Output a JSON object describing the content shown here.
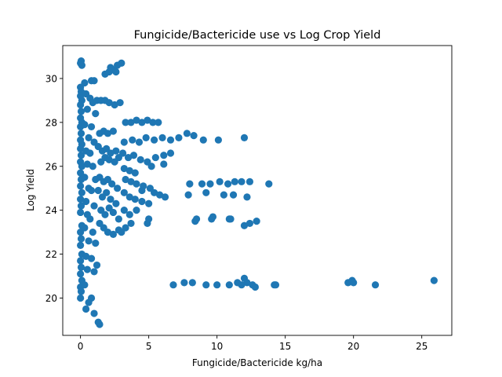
{
  "chart_data": {
    "type": "scatter",
    "title": "Fungicide/Bactericide use vs Log Crop Yield",
    "xlabel": "Fungicide/Bactericide kg/ha",
    "ylabel": "Log Yield",
    "xlim": [
      -1.3,
      27.2
    ],
    "ylim": [
      18.3,
      31.5
    ],
    "xticks": [
      0,
      5,
      10,
      15,
      20,
      25
    ],
    "yticks": [
      20,
      22,
      24,
      26,
      28,
      30
    ],
    "grid": false,
    "legend": "none",
    "color": "#1f77b4",
    "series": [
      {
        "points": [
          [
            0.0,
            30.7
          ],
          [
            0.05,
            30.8
          ],
          [
            0.1,
            30.6
          ],
          [
            0.0,
            29.6
          ],
          [
            0.05,
            29.4
          ],
          [
            0.0,
            29.2
          ],
          [
            0.1,
            29.0
          ],
          [
            0.0,
            28.8
          ],
          [
            0.05,
            28.5
          ],
          [
            0.0,
            28.2
          ],
          [
            0.1,
            28.0
          ],
          [
            0.0,
            27.8
          ],
          [
            0.05,
            27.5
          ],
          [
            0.0,
            27.2
          ],
          [
            0.1,
            27.0
          ],
          [
            0.0,
            26.8
          ],
          [
            0.05,
            26.5
          ],
          [
            0.0,
            26.2
          ],
          [
            0.1,
            26.0
          ],
          [
            0.0,
            25.7
          ],
          [
            0.05,
            25.4
          ],
          [
            0.0,
            25.1
          ],
          [
            0.1,
            24.8
          ],
          [
            0.0,
            24.5
          ],
          [
            0.05,
            24.2
          ],
          [
            0.0,
            23.9
          ],
          [
            0.1,
            23.3
          ],
          [
            0.0,
            23.0
          ],
          [
            0.05,
            22.7
          ],
          [
            0.0,
            22.4
          ],
          [
            0.1,
            22.0
          ],
          [
            0.0,
            21.7
          ],
          [
            0.05,
            21.4
          ],
          [
            0.0,
            21.1
          ],
          [
            0.1,
            20.8
          ],
          [
            0.0,
            20.5
          ],
          [
            0.05,
            20.3
          ],
          [
            0.0,
            20.0
          ],
          [
            0.3,
            29.8
          ],
          [
            0.4,
            29.3
          ],
          [
            0.5,
            28.6
          ],
          [
            0.3,
            27.9
          ],
          [
            0.6,
            27.3
          ],
          [
            0.4,
            26.7
          ],
          [
            0.5,
            26.1
          ],
          [
            0.3,
            25.5
          ],
          [
            0.6,
            25.0
          ],
          [
            0.4,
            24.4
          ],
          [
            0.5,
            23.8
          ],
          [
            0.3,
            23.2
          ],
          [
            0.6,
            22.6
          ],
          [
            0.4,
            21.9
          ],
          [
            0.5,
            21.3
          ],
          [
            0.3,
            20.6
          ],
          [
            0.6,
            19.8
          ],
          [
            0.4,
            19.5
          ],
          [
            0.8,
            29.9
          ],
          [
            1.0,
            29.9
          ],
          [
            0.7,
            29.1
          ],
          [
            0.9,
            28.9
          ],
          [
            1.1,
            28.4
          ],
          [
            0.8,
            27.8
          ],
          [
            1.0,
            27.1
          ],
          [
            0.7,
            26.6
          ],
          [
            0.9,
            26.0
          ],
          [
            1.1,
            25.4
          ],
          [
            0.8,
            24.9
          ],
          [
            1.0,
            24.2
          ],
          [
            0.7,
            23.6
          ],
          [
            0.9,
            23.0
          ],
          [
            1.1,
            22.5
          ],
          [
            0.8,
            21.8
          ],
          [
            1.0,
            21.2
          ],
          [
            0.8,
            20.0
          ],
          [
            1.0,
            19.3
          ],
          [
            1.3,
            18.9
          ],
          [
            1.4,
            18.8
          ],
          [
            1.2,
            29.0
          ],
          [
            1.5,
            29.0
          ],
          [
            1.8,
            29.0
          ],
          [
            2.1,
            28.9
          ],
          [
            2.5,
            28.8
          ],
          [
            2.9,
            28.9
          ],
          [
            1.4,
            27.5
          ],
          [
            1.7,
            27.6
          ],
          [
            2.0,
            27.5
          ],
          [
            2.4,
            27.6
          ],
          [
            1.3,
            26.9
          ],
          [
            1.6,
            26.7
          ],
          [
            1.9,
            26.8
          ],
          [
            2.2,
            26.6
          ],
          [
            2.6,
            26.7
          ],
          [
            1.5,
            26.2
          ],
          [
            1.8,
            26.4
          ],
          [
            2.1,
            26.3
          ],
          [
            2.5,
            26.2
          ],
          [
            2.8,
            26.4
          ],
          [
            1.4,
            25.5
          ],
          [
            1.7,
            25.3
          ],
          [
            2.0,
            25.4
          ],
          [
            2.3,
            25.2
          ],
          [
            2.7,
            25.0
          ],
          [
            1.3,
            24.9
          ],
          [
            1.6,
            24.6
          ],
          [
            1.9,
            24.8
          ],
          [
            2.2,
            24.5
          ],
          [
            2.6,
            24.3
          ],
          [
            1.5,
            24.0
          ],
          [
            1.8,
            23.8
          ],
          [
            2.1,
            24.1
          ],
          [
            2.4,
            23.9
          ],
          [
            2.8,
            23.6
          ],
          [
            1.4,
            23.4
          ],
          [
            1.7,
            23.2
          ],
          [
            2.0,
            23.0
          ],
          [
            2.4,
            22.9
          ],
          [
            2.8,
            23.1
          ],
          [
            1.2,
            21.5
          ],
          [
            1.8,
            30.2
          ],
          [
            2.1,
            30.3
          ],
          [
            2.4,
            30.4
          ],
          [
            2.7,
            30.6
          ],
          [
            3.0,
            30.7
          ],
          [
            2.2,
            30.5
          ],
          [
            2.6,
            30.3
          ],
          [
            3.3,
            28.0
          ],
          [
            3.7,
            28.0
          ],
          [
            4.1,
            28.1
          ],
          [
            4.5,
            28.0
          ],
          [
            4.9,
            28.1
          ],
          [
            5.3,
            28.0
          ],
          [
            5.7,
            28.0
          ],
          [
            3.2,
            27.1
          ],
          [
            3.8,
            27.2
          ],
          [
            4.3,
            27.1
          ],
          [
            4.8,
            27.3
          ],
          [
            5.4,
            27.2
          ],
          [
            6.0,
            27.3
          ],
          [
            6.6,
            27.2
          ],
          [
            7.2,
            27.3
          ],
          [
            7.8,
            27.5
          ],
          [
            8.3,
            27.4
          ],
          [
            9.0,
            27.2
          ],
          [
            10.1,
            27.2
          ],
          [
            12.0,
            27.3
          ],
          [
            3.1,
            26.6
          ],
          [
            3.5,
            26.4
          ],
          [
            3.9,
            26.5
          ],
          [
            4.4,
            26.3
          ],
          [
            4.9,
            26.2
          ],
          [
            5.5,
            26.4
          ],
          [
            6.1,
            26.5
          ],
          [
            6.6,
            26.6
          ],
          [
            5.2,
            26.0
          ],
          [
            6.1,
            26.1
          ],
          [
            3.2,
            25.9
          ],
          [
            3.6,
            25.8
          ],
          [
            4.0,
            25.7
          ],
          [
            3.3,
            25.4
          ],
          [
            3.7,
            25.3
          ],
          [
            4.1,
            25.2
          ],
          [
            4.6,
            25.1
          ],
          [
            3.2,
            24.8
          ],
          [
            3.6,
            24.6
          ],
          [
            4.0,
            24.5
          ],
          [
            4.5,
            24.4
          ],
          [
            5.0,
            24.3
          ],
          [
            4.5,
            24.9
          ],
          [
            5.1,
            25.0
          ],
          [
            5.4,
            24.8
          ],
          [
            5.8,
            24.7
          ],
          [
            6.2,
            24.6
          ],
          [
            3.2,
            24.0
          ],
          [
            3.6,
            23.8
          ],
          [
            4.1,
            24.0
          ],
          [
            3.3,
            23.2
          ],
          [
            3.7,
            23.4
          ],
          [
            3.0,
            23.0
          ],
          [
            4.9,
            23.4
          ],
          [
            5.0,
            23.6
          ],
          [
            8.0,
            25.2
          ],
          [
            8.9,
            25.2
          ],
          [
            9.5,
            25.2
          ],
          [
            10.2,
            25.3
          ],
          [
            10.8,
            25.2
          ],
          [
            11.3,
            25.3
          ],
          [
            11.8,
            25.3
          ],
          [
            12.4,
            25.3
          ],
          [
            13.8,
            25.2
          ],
          [
            7.9,
            24.7
          ],
          [
            9.2,
            24.8
          ],
          [
            10.5,
            24.7
          ],
          [
            11.2,
            24.7
          ],
          [
            12.2,
            24.6
          ],
          [
            8.4,
            23.5
          ],
          [
            8.5,
            23.6
          ],
          [
            9.6,
            23.6
          ],
          [
            9.7,
            23.7
          ],
          [
            10.9,
            23.6
          ],
          [
            11.0,
            23.6
          ],
          [
            12.0,
            23.3
          ],
          [
            12.4,
            23.4
          ],
          [
            12.9,
            23.5
          ],
          [
            6.8,
            20.6
          ],
          [
            7.6,
            20.7
          ],
          [
            8.2,
            20.7
          ],
          [
            9.2,
            20.6
          ],
          [
            10.0,
            20.6
          ],
          [
            10.9,
            20.6
          ],
          [
            11.5,
            20.7
          ],
          [
            11.8,
            20.6
          ],
          [
            12.0,
            20.9
          ],
          [
            12.2,
            20.7
          ],
          [
            12.6,
            20.6
          ],
          [
            12.8,
            20.5
          ],
          [
            14.2,
            20.6
          ],
          [
            14.3,
            20.6
          ],
          [
            19.6,
            20.7
          ],
          [
            19.9,
            20.8
          ],
          [
            20.0,
            20.7
          ],
          [
            21.6,
            20.6
          ],
          [
            25.9,
            20.8
          ]
        ]
      }
    ]
  }
}
